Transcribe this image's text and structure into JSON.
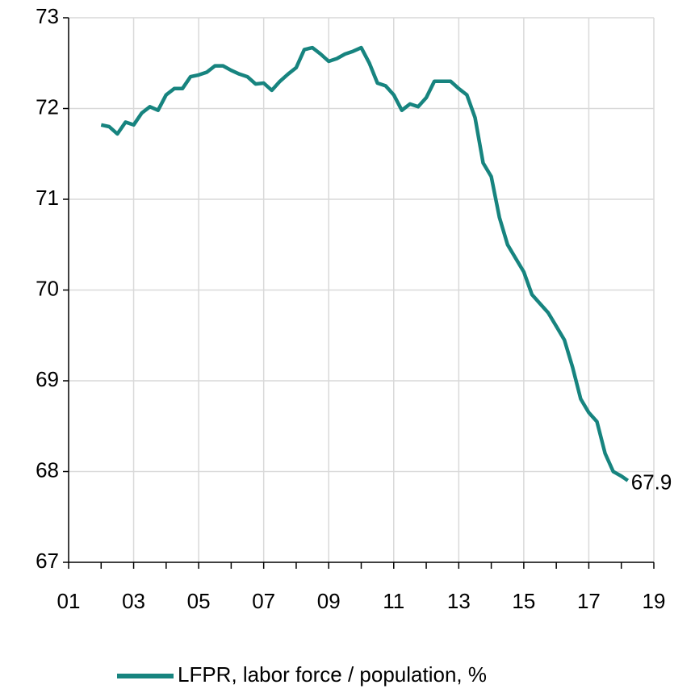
{
  "chart_data": {
    "type": "line",
    "x": [
      2.0,
      2.25,
      2.5,
      2.75,
      3.0,
      3.25,
      3.5,
      3.75,
      4.0,
      4.25,
      4.5,
      4.75,
      5.0,
      5.25,
      5.5,
      5.75,
      6.0,
      6.25,
      6.5,
      6.75,
      7.0,
      7.25,
      7.5,
      7.75,
      8.0,
      8.25,
      8.5,
      8.75,
      9.0,
      9.25,
      9.5,
      9.75,
      10.0,
      10.25,
      10.5,
      10.75,
      11.0,
      11.25,
      11.5,
      11.75,
      12.0,
      12.25,
      12.5,
      12.75,
      13.0,
      13.25,
      13.5,
      13.75,
      14.0,
      14.25,
      14.5,
      14.75,
      15.0,
      15.25,
      15.5,
      15.75,
      16.0,
      16.25,
      16.5,
      16.75,
      17.0,
      17.25,
      17.5,
      17.75,
      18.0,
      18.2
    ],
    "series": [
      {
        "name": "LFPR, labor force / population, %",
        "color": "#17847f",
        "values": [
          71.82,
          71.8,
          71.72,
          71.85,
          71.82,
          71.95,
          72.02,
          71.98,
          72.15,
          72.22,
          72.22,
          72.35,
          72.37,
          72.4,
          72.47,
          72.47,
          72.42,
          72.38,
          72.35,
          72.27,
          72.28,
          72.2,
          72.3,
          72.38,
          72.45,
          72.65,
          72.67,
          72.6,
          72.52,
          72.55,
          72.6,
          72.63,
          72.67,
          72.5,
          72.28,
          72.25,
          72.15,
          71.98,
          72.05,
          72.02,
          72.12,
          72.3,
          72.3,
          72.3,
          72.22,
          72.15,
          71.9,
          71.4,
          71.25,
          70.8,
          70.5,
          70.35,
          70.2,
          69.95,
          69.85,
          69.75,
          69.6,
          69.45,
          69.15,
          68.8,
          68.65,
          68.55,
          68.2,
          68.0,
          67.95,
          67.9
        ]
      }
    ],
    "xlim": [
      1,
      19
    ],
    "xticks": [
      {
        "value": 1,
        "label": "01"
      },
      {
        "value": 3,
        "label": "03"
      },
      {
        "value": 5,
        "label": "05"
      },
      {
        "value": 7,
        "label": "07"
      },
      {
        "value": 9,
        "label": "09"
      },
      11,
      13,
      15,
      17,
      19
    ],
    "xminorticks": [
      2,
      4,
      6,
      8,
      10,
      12,
      14,
      16,
      18
    ],
    "ylim": [
      67,
      73
    ],
    "yticks": [
      67,
      68,
      69,
      70,
      71,
      72,
      73
    ],
    "grid": true,
    "legend": "bottom"
  }
}
